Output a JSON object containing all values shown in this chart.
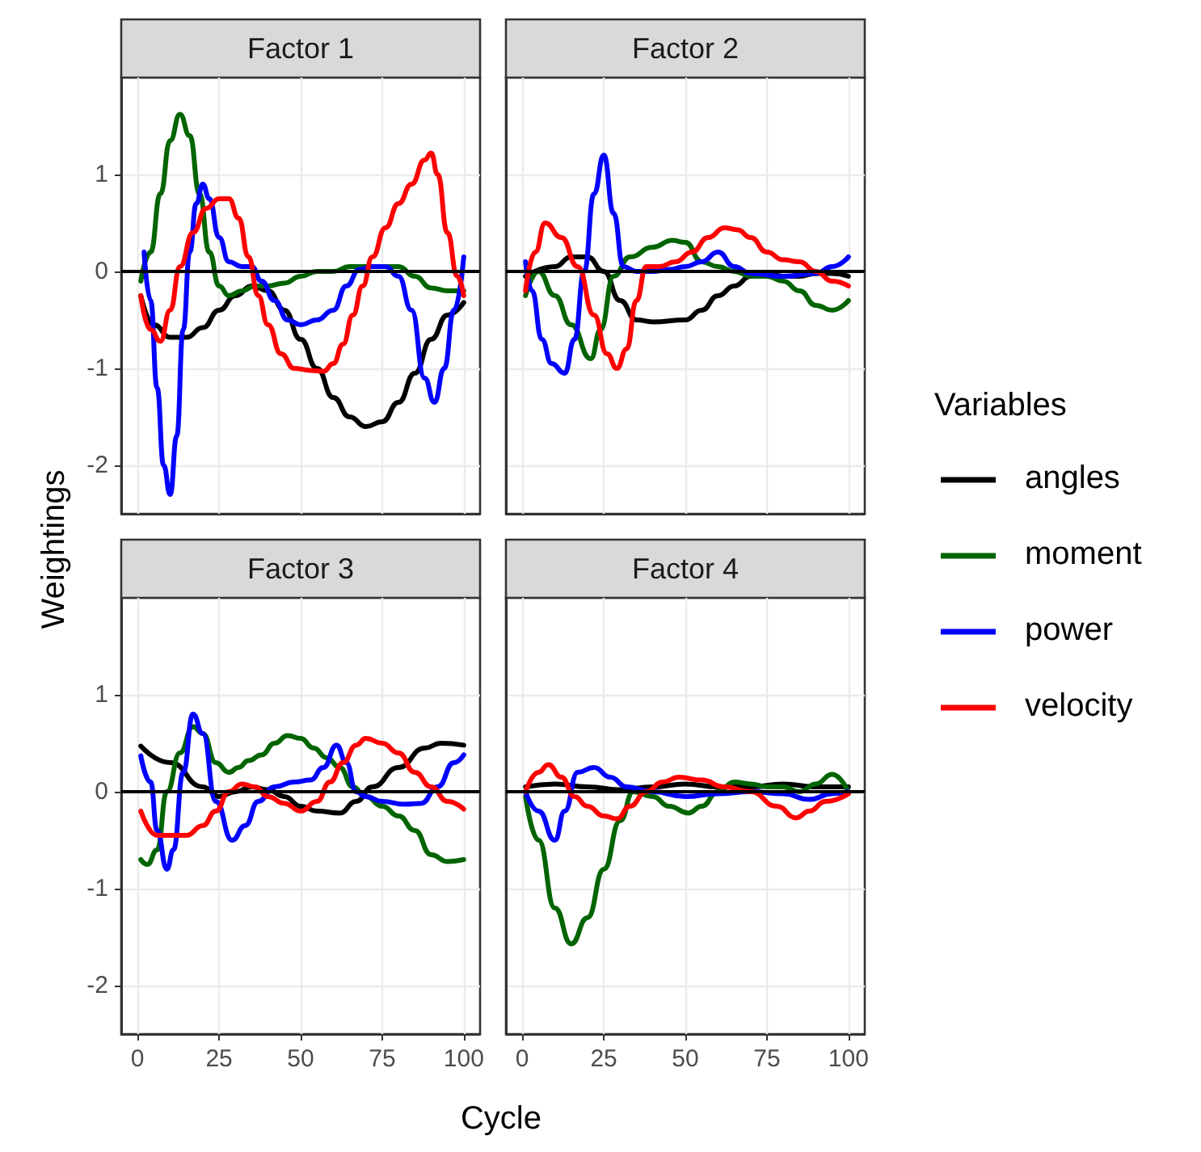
{
  "chart_data": [
    {
      "type": "line",
      "title": "Factor 1",
      "ylabel": "Weightings",
      "legend_title": "Variables",
      "legend": "right",
      "grid": true,
      "tick_labels": "y",
      "xlim": [
        -5,
        105
      ],
      "ylim": [
        -2.5,
        2.0
      ],
      "xticks": [
        0,
        25,
        50,
        75,
        100
      ],
      "yticks": [
        -2,
        -1,
        0,
        1
      ],
      "ref_lines": [
        {
          "axis": "y",
          "value": 0,
          "color": "#000000"
        }
      ],
      "series": [
        {
          "name": "angles",
          "color": "#000000",
          "x": [
            1,
            5,
            10,
            15,
            20,
            25,
            30,
            35,
            40,
            45,
            50,
            55,
            60,
            65,
            70,
            75,
            80,
            85,
            90,
            95,
            100
          ],
          "values": [
            -0.25,
            -0.55,
            -0.68,
            -0.68,
            -0.58,
            -0.4,
            -0.25,
            -0.15,
            -0.2,
            -0.4,
            -0.7,
            -1.0,
            -1.3,
            -1.5,
            -1.6,
            -1.55,
            -1.35,
            -1.05,
            -0.7,
            -0.45,
            -0.32
          ]
        },
        {
          "name": "moment",
          "color": "#006400",
          "x": [
            1,
            4,
            7,
            10,
            13,
            16,
            19,
            22,
            25,
            28,
            32,
            36,
            40,
            45,
            50,
            55,
            60,
            65,
            70,
            75,
            80,
            85,
            90,
            95,
            100
          ],
          "values": [
            -0.1,
            0.2,
            0.8,
            1.35,
            1.62,
            1.4,
            0.8,
            0.2,
            -0.15,
            -0.25,
            -0.2,
            -0.15,
            -0.15,
            -0.12,
            -0.05,
            0,
            0,
            0.05,
            0.05,
            0.05,
            0.05,
            -0.05,
            -0.17,
            -0.2,
            -0.2
          ]
        },
        {
          "name": "power",
          "color": "#0000ff",
          "x": [
            2,
            4,
            6,
            8,
            10,
            12,
            14,
            16,
            18,
            20,
            22,
            25,
            28,
            32,
            35,
            38,
            42,
            46,
            50,
            55,
            60,
            64,
            68,
            72,
            76,
            80,
            84,
            88,
            91,
            94,
            97,
            100
          ],
          "values": [
            0.2,
            -0.3,
            -1.2,
            -2.0,
            -2.3,
            -1.7,
            -0.6,
            0.2,
            0.7,
            0.9,
            0.75,
            0.35,
            0.1,
            0.05,
            0.05,
            -0.1,
            -0.3,
            -0.5,
            -0.55,
            -0.5,
            -0.4,
            -0.15,
            0.02,
            0.05,
            0.05,
            -0.05,
            -0.4,
            -1.1,
            -1.35,
            -1.0,
            -0.4,
            0.15
          ]
        },
        {
          "name": "velocity",
          "color": "#ff0000",
          "x": [
            1,
            4,
            7,
            10,
            13,
            17,
            21,
            25,
            28,
            31,
            34,
            37,
            40,
            44,
            48,
            53,
            57,
            60,
            63,
            66,
            69,
            72,
            76,
            80,
            84,
            88,
            90,
            92,
            95,
            98,
            100
          ],
          "values": [
            -0.25,
            -0.6,
            -0.72,
            -0.4,
            0.05,
            0.4,
            0.65,
            0.75,
            0.75,
            0.55,
            0.15,
            -0.25,
            -0.55,
            -0.85,
            -1.0,
            -1.02,
            -1.03,
            -0.95,
            -0.75,
            -0.45,
            -0.15,
            0.15,
            0.45,
            0.7,
            0.9,
            1.15,
            1.22,
            1.0,
            0.4,
            -0.05,
            -0.25
          ]
        }
      ]
    },
    {
      "type": "line",
      "title": "Factor 2",
      "grid": true,
      "tick_labels": false,
      "xlim": [
        -5,
        105
      ],
      "ylim": [
        -2.5,
        2.0
      ],
      "xticks": [
        0,
        25,
        50,
        75,
        100
      ],
      "yticks": [
        -2,
        -1,
        0,
        1
      ],
      "ref_lines": [
        {
          "axis": "y",
          "value": 0,
          "color": "#000000"
        }
      ],
      "series": [
        {
          "color": "#000000",
          "x": [
            1,
            10,
            15,
            20,
            25,
            30,
            35,
            40,
            50,
            55,
            60,
            65,
            70,
            75,
            80,
            85,
            90,
            95,
            100
          ],
          "values": [
            -0.05,
            0.05,
            0.15,
            0.15,
            0.0,
            -0.3,
            -0.5,
            -0.52,
            -0.5,
            -0.4,
            -0.25,
            -0.15,
            -0.05,
            -0.02,
            -0.05,
            -0.05,
            -0.02,
            -0.02,
            -0.05
          ]
        },
        {
          "color": "#006400",
          "x": [
            1,
            5,
            10,
            15,
            21,
            24,
            28,
            33,
            40,
            46,
            50,
            55,
            60,
            65,
            70,
            75,
            80,
            85,
            90,
            95,
            100
          ],
          "values": [
            -0.25,
            0,
            -0.25,
            -0.55,
            -0.9,
            -0.6,
            -0.05,
            0.15,
            0.25,
            0.32,
            0.3,
            0.1,
            0.05,
            0.0,
            -0.05,
            -0.05,
            -0.1,
            -0.2,
            -0.35,
            -0.4,
            -0.3
          ]
        },
        {
          "color": "#0000ff",
          "x": [
            1,
            3,
            6,
            9,
            13,
            16,
            19,
            22,
            25,
            28,
            31,
            35,
            40,
            45,
            50,
            55,
            60,
            65,
            70,
            80,
            90,
            95,
            100
          ],
          "values": [
            0.1,
            -0.2,
            -0.7,
            -0.95,
            -1.05,
            -0.7,
            0,
            0.8,
            1.2,
            0.6,
            0.05,
            0,
            0,
            0.02,
            0.05,
            0.1,
            0.2,
            0.05,
            -0.02,
            -0.05,
            -0.02,
            0.05,
            0.15
          ]
        },
        {
          "color": "#ff0000",
          "x": [
            1,
            4,
            7,
            12,
            17,
            22,
            26,
            29,
            32,
            35,
            38,
            42,
            47,
            52,
            57,
            62,
            66,
            70,
            75,
            80,
            85,
            90,
            95,
            100
          ],
          "values": [
            -0.2,
            0.2,
            0.5,
            0.35,
            0.05,
            -0.45,
            -0.85,
            -1.0,
            -0.8,
            -0.3,
            0.05,
            0.05,
            0.1,
            0.2,
            0.35,
            0.45,
            0.43,
            0.35,
            0.2,
            0.12,
            0.1,
            0.0,
            -0.1,
            -0.15
          ]
        }
      ]
    },
    {
      "type": "line",
      "title": "Factor 3",
      "xlabel": "Cycle",
      "grid": true,
      "xlim": [
        -5,
        105
      ],
      "ylim": [
        -2.5,
        2.0
      ],
      "xticks": [
        0,
        25,
        50,
        75,
        100
      ],
      "yticks": [
        -2,
        -1,
        0,
        1
      ],
      "ref_lines": [
        {
          "axis": "y",
          "value": 0,
          "color": "#000000"
        }
      ],
      "series": [
        {
          "color": "#000000",
          "x": [
            1,
            10,
            20,
            25,
            30,
            35,
            40,
            45,
            50,
            55,
            62,
            67,
            72,
            80,
            88,
            93,
            100
          ],
          "values": [
            0.47,
            0.3,
            0.05,
            -0.05,
            0,
            0.05,
            0.02,
            -0.05,
            -0.15,
            -0.2,
            -0.22,
            -0.1,
            0.05,
            0.25,
            0.45,
            0.5,
            0.48
          ]
        },
        {
          "color": "#006400",
          "x": [
            1,
            3,
            6,
            9,
            13,
            17,
            20,
            24,
            28,
            31,
            34,
            38,
            42,
            46,
            50,
            54,
            58,
            62,
            66,
            70,
            75,
            80,
            85,
            90,
            95,
            100
          ],
          "values": [
            -0.7,
            -0.75,
            -0.6,
            0,
            0.4,
            0.67,
            0.6,
            0.3,
            0.2,
            0.25,
            0.32,
            0.38,
            0.5,
            0.58,
            0.55,
            0.45,
            0.35,
            0.25,
            0.05,
            -0.05,
            -0.15,
            -0.25,
            -0.4,
            -0.65,
            -0.72,
            -0.7
          ]
        },
        {
          "color": "#0000ff",
          "x": [
            1,
            4,
            6,
            9,
            11,
            14,
            17,
            20,
            24,
            29,
            33,
            37,
            42,
            48,
            53,
            57,
            61,
            64,
            67,
            70,
            75,
            82,
            87,
            92,
            97,
            100
          ],
          "values": [
            0.37,
            0.1,
            -0.4,
            -0.8,
            -0.6,
            0.2,
            0.8,
            0.6,
            -0.1,
            -0.5,
            -0.35,
            -0.1,
            0.05,
            0.1,
            0.12,
            0.25,
            0.48,
            0.3,
            0.0,
            -0.05,
            -0.1,
            -0.13,
            -0.12,
            0.05,
            0.3,
            0.38
          ]
        },
        {
          "color": "#ff0000",
          "x": [
            1,
            6,
            10,
            15,
            20,
            24,
            28,
            32,
            36,
            40,
            45,
            50,
            55,
            59,
            63,
            67,
            70,
            75,
            80,
            85,
            90,
            95,
            100
          ],
          "values": [
            -0.2,
            -0.45,
            -0.45,
            -0.45,
            -0.35,
            -0.2,
            0.0,
            0.08,
            0.05,
            -0.05,
            -0.12,
            -0.2,
            -0.1,
            0.1,
            0.3,
            0.48,
            0.55,
            0.5,
            0.4,
            0.2,
            0.05,
            -0.1,
            -0.18
          ]
        }
      ]
    },
    {
      "type": "line",
      "title": "Factor 4",
      "grid": true,
      "tick_labels": "x",
      "xlim": [
        -5,
        105
      ],
      "ylim": [
        -2.5,
        2.0
      ],
      "xticks": [
        0,
        25,
        50,
        75,
        100
      ],
      "yticks": [
        -2,
        -1,
        0,
        1
      ],
      "ref_lines": [
        {
          "axis": "y",
          "value": 0,
          "color": "#000000"
        }
      ],
      "series": [
        {
          "color": "#000000",
          "x": [
            1,
            10,
            20,
            30,
            40,
            50,
            60,
            70,
            80,
            90,
            100
          ],
          "values": [
            0.05,
            0.08,
            0.05,
            0.02,
            0.05,
            0.08,
            0.05,
            0.05,
            0.08,
            0.05,
            0.05
          ]
        },
        {
          "color": "#006400",
          "x": [
            1,
            5,
            10,
            15,
            20,
            25,
            30,
            34,
            40,
            45,
            51,
            55,
            60,
            65,
            70,
            75,
            80,
            85,
            90,
            95,
            100
          ],
          "values": [
            -0.05,
            -0.5,
            -1.2,
            -1.57,
            -1.3,
            -0.8,
            -0.3,
            0,
            -0.05,
            -0.15,
            -0.22,
            -0.15,
            0.0,
            0.1,
            0.08,
            0.05,
            0.05,
            0.0,
            0.08,
            0.18,
            0.0
          ]
        },
        {
          "color": "#0000ff",
          "x": [
            1,
            5,
            10,
            13,
            17,
            22,
            27,
            32,
            40,
            50,
            60,
            70,
            80,
            88,
            95,
            100
          ],
          "values": [
            0,
            -0.2,
            -0.5,
            -0.2,
            0.2,
            0.25,
            0.15,
            0.05,
            0.0,
            -0.05,
            -0.02,
            0.0,
            -0.02,
            -0.08,
            -0.02,
            0
          ]
        },
        {
          "color": "#ff0000",
          "x": [
            1,
            5,
            8,
            12,
            16,
            20,
            25,
            29,
            33,
            38,
            43,
            48,
            55,
            62,
            70,
            78,
            84,
            88,
            93,
            100
          ],
          "values": [
            0,
            0.2,
            0.28,
            0.15,
            -0.05,
            -0.15,
            -0.25,
            -0.28,
            -0.15,
            0.0,
            0.1,
            0.15,
            0.12,
            0.05,
            0.0,
            -0.15,
            -0.27,
            -0.2,
            -0.1,
            -0.02
          ]
        }
      ]
    }
  ]
}
